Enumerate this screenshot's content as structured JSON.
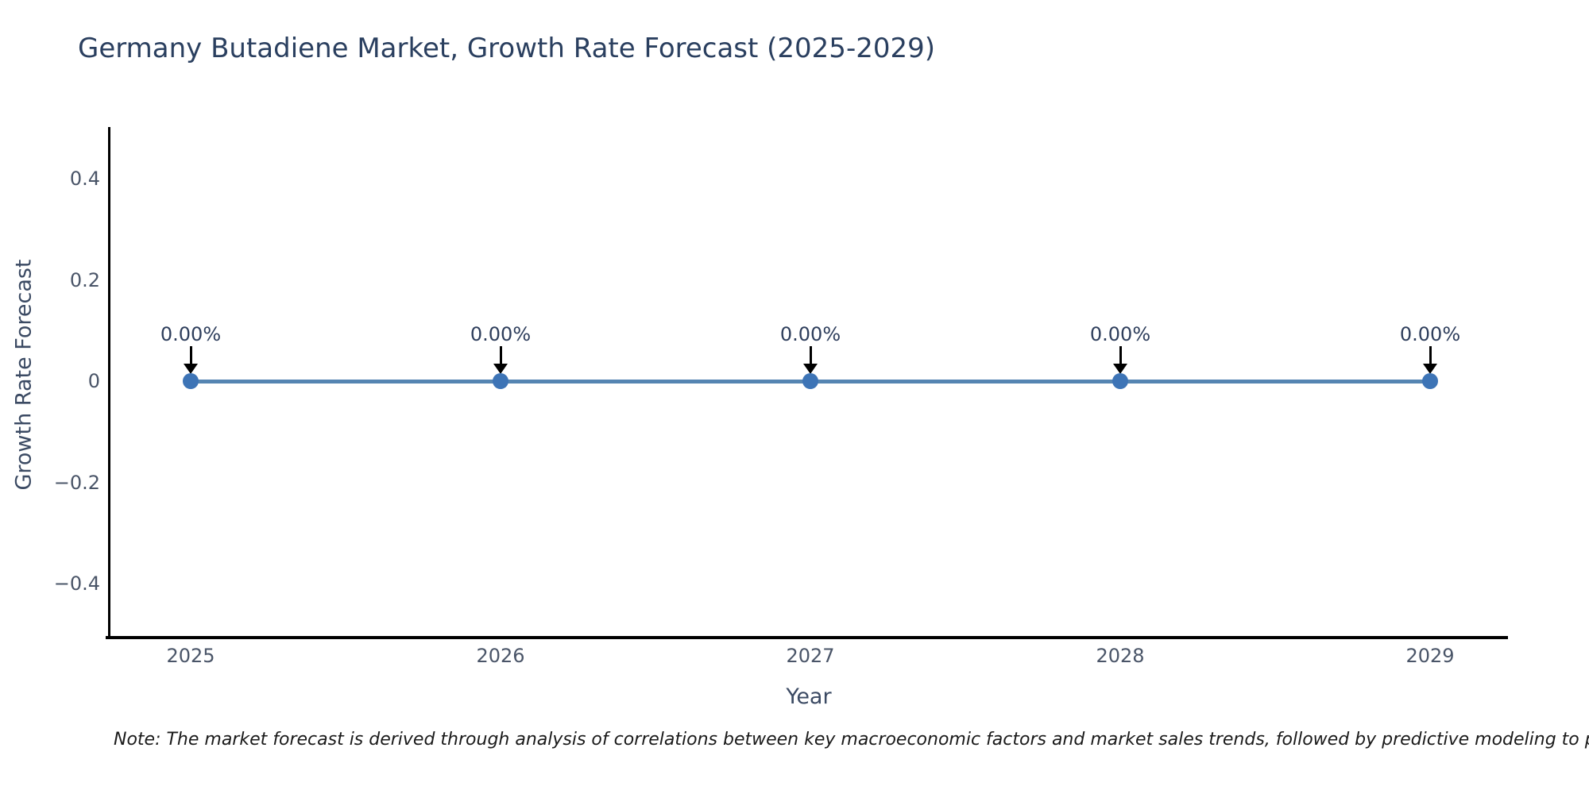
{
  "chart_data": {
    "type": "line",
    "title": "Germany Butadiene Market, Growth Rate Forecast (2025-2029)",
    "xlabel": "Year",
    "ylabel": "Growth Rate Forecast",
    "x": [
      2025,
      2026,
      2027,
      2028,
      2029
    ],
    "categories": [
      "2025",
      "2026",
      "2027",
      "2028",
      "2029"
    ],
    "series": [
      {
        "name": "Growth Rate Forecast",
        "values": [
          0,
          0,
          0,
          0,
          0
        ]
      }
    ],
    "point_labels": [
      "0.00%",
      "0.00%",
      "0.00%",
      "0.00%",
      "0.00%"
    ],
    "ylim": [
      -0.5,
      0.5
    ],
    "yticks": [
      0.4,
      0.2,
      0,
      -0.2,
      -0.4
    ],
    "ytick_labels": [
      "0.4",
      "0.2",
      "0",
      "−0.2",
      "−0.4"
    ],
    "grid": false,
    "legend_position": "none",
    "annotations_arrow": "down-arrow-to-point",
    "colors": {
      "line": "#5585b2",
      "marker": "#3d74b6",
      "arrow": "#000000",
      "axis_line": "#000000",
      "title_text": "#2a3f5f",
      "tick_text": "#4a5568",
      "axis_title_text": "#3b4a63",
      "background": "#ffffff"
    }
  },
  "note": "Note: The market forecast is derived through analysis of correlations between key macroeconomic factors and market sales trends, followed by predictive modeling to project future sales."
}
